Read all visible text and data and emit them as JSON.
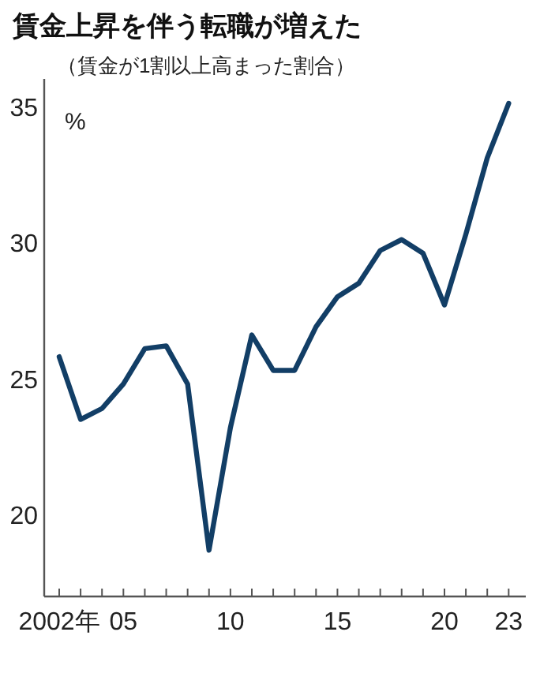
{
  "chart_data": {
    "type": "line",
    "title": "賃金上昇を伴う転職が増えた",
    "subtitle": "（賃金が1割以上高まった割合）",
    "ylabel": "%",
    "x": [
      2002,
      2003,
      2004,
      2005,
      2006,
      2007,
      2008,
      2009,
      2010,
      2011,
      2012,
      2013,
      2014,
      2015,
      2016,
      2017,
      2018,
      2019,
      2020,
      2021,
      2022,
      2023
    ],
    "series": [
      {
        "color": "#123e66",
        "values": [
          25.8,
          23.5,
          23.9,
          24.8,
          26.1,
          26.2,
          24.8,
          18.7,
          23.2,
          26.6,
          25.3,
          25.3,
          26.9,
          28.0,
          28.5,
          29.7,
          30.1,
          29.6,
          27.7,
          30.3,
          33.1,
          35.1
        ]
      }
    ],
    "xlim": [
      2001.3,
      2023.8
    ],
    "ylim": [
      17,
      36
    ],
    "yticks": [
      20,
      25,
      30,
      35
    ],
    "xticks": [
      {
        "value": 2002,
        "label": "2002年"
      },
      {
        "value": 2003,
        "label": null
      },
      {
        "value": 2004,
        "label": null
      },
      {
        "value": 2005,
        "label": "05"
      },
      {
        "value": 2006,
        "label": null
      },
      {
        "value": 2007,
        "label": null
      },
      {
        "value": 2008,
        "label": null
      },
      {
        "value": 2009,
        "label": null
      },
      {
        "value": 2010,
        "label": "10"
      },
      {
        "value": 2011,
        "label": null
      },
      {
        "value": 2012,
        "label": null
      },
      {
        "value": 2013,
        "label": null
      },
      {
        "value": 2014,
        "label": null
      },
      {
        "value": 2015,
        "label": "15"
      },
      {
        "value": 2016,
        "label": null
      },
      {
        "value": 2017,
        "label": null
      },
      {
        "value": 2018,
        "label": null
      },
      {
        "value": 2019,
        "label": null
      },
      {
        "value": 2020,
        "label": "20"
      },
      {
        "value": 2021,
        "label": null
      },
      {
        "value": 2022,
        "label": null
      },
      {
        "value": 2023,
        "label": "23"
      }
    ],
    "grid": false,
    "marker": "none",
    "line_style": "solid"
  }
}
